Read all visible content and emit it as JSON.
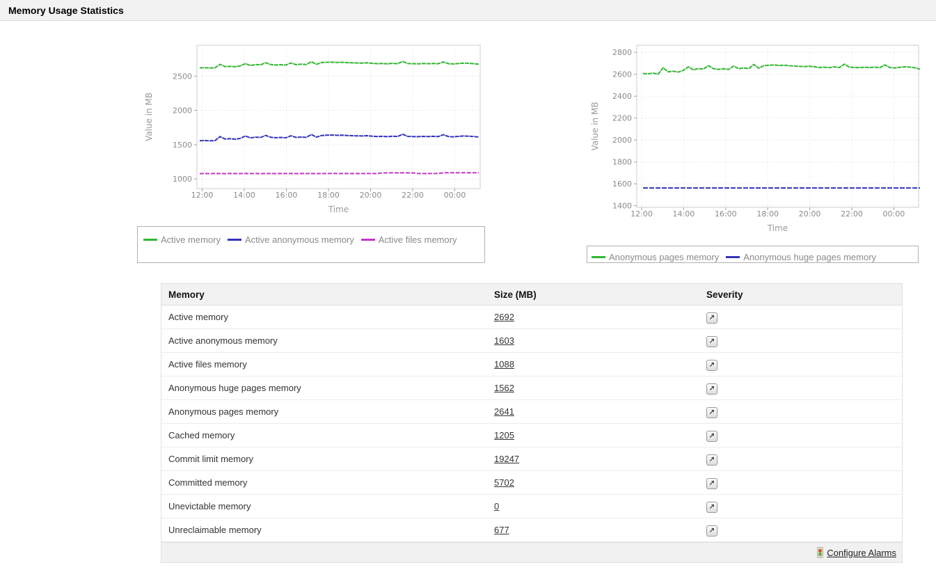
{
  "page": {
    "title": "Memory Usage Statistics"
  },
  "icons": {
    "severity_glyph": "↗"
  },
  "chart_data": [
    {
      "id": "left",
      "type": "line",
      "title": "",
      "xlabel": "Time",
      "ylabel": "Value in MB",
      "xticks": [
        "12:00",
        "14:00",
        "16:00",
        "18:00",
        "20:00",
        "22:00",
        "00:00"
      ],
      "yticks": [
        1000,
        1500,
        2000,
        2500
      ],
      "ylim": [
        860,
        2950
      ],
      "grid": true,
      "legend_position": "bottom",
      "series": [
        {
          "name": "Active memory",
          "color": "#33b733",
          "dash": "6 1",
          "values": [
            2620,
            2622,
            2618,
            2621,
            2672,
            2638,
            2642,
            2636,
            2648,
            2682,
            2655,
            2668,
            2664,
            2695,
            2668,
            2662,
            2666,
            2661,
            2692,
            2666,
            2674,
            2668,
            2710,
            2672,
            2697,
            2701,
            2703,
            2698,
            2701,
            2696,
            2693,
            2691,
            2689,
            2693,
            2686,
            2681,
            2684,
            2679,
            2686,
            2681,
            2714,
            2683,
            2681,
            2679,
            2683,
            2681,
            2684,
            2680,
            2707,
            2681,
            2677,
            2683,
            2689,
            2686,
            2681,
            2673
          ]
        },
        {
          "name": "Active anonymous memory",
          "color": "#3333bb",
          "dash": "6 1",
          "values": [
            1558,
            1560,
            1556,
            1559,
            1618,
            1582,
            1588,
            1580,
            1592,
            1628,
            1600,
            1610,
            1606,
            1635,
            1608,
            1602,
            1606,
            1601,
            1630,
            1606,
            1612,
            1607,
            1648,
            1610,
            1634,
            1638,
            1641,
            1636,
            1639,
            1634,
            1631,
            1629,
            1627,
            1631,
            1624,
            1619,
            1622,
            1617,
            1624,
            1619,
            1652,
            1621,
            1619,
            1617,
            1621,
            1619,
            1622,
            1618,
            1645,
            1619,
            1615,
            1621,
            1627,
            1624,
            1619,
            1611
          ]
        },
        {
          "name": "Active files memory",
          "color": "#c438c4",
          "dash": "6 2",
          "values": [
            1078,
            1079,
            1078,
            1080,
            1079,
            1078,
            1080,
            1079,
            1078,
            1080,
            1079,
            1080,
            1078,
            1080,
            1079,
            1078,
            1080,
            1079,
            1080,
            1078,
            1080,
            1079,
            1080,
            1078,
            1080,
            1079,
            1080,
            1080,
            1079,
            1080,
            1079,
            1080,
            1079,
            1080,
            1079,
            1080,
            1088,
            1089,
            1090,
            1089,
            1090,
            1089,
            1088,
            1080,
            1079,
            1080,
            1079,
            1080,
            1090,
            1091,
            1090,
            1091,
            1090,
            1091,
            1090,
            1090
          ]
        }
      ]
    },
    {
      "id": "right",
      "type": "line",
      "title": "",
      "xlabel": "Time",
      "ylabel": "Value in MB",
      "xticks": [
        "12:00",
        "14:00",
        "16:00",
        "18:00",
        "20:00",
        "22:00",
        "00:00"
      ],
      "yticks": [
        1400,
        1600,
        1800,
        2000,
        2200,
        2400,
        2600,
        2800
      ],
      "ylim": [
        1385,
        2865
      ],
      "grid": true,
      "legend_position": "bottom",
      "series": [
        {
          "name": "Anonymous pages memory",
          "color": "#33b733",
          "dash": "6 1",
          "values": [
            2607,
            2604,
            2610,
            2601,
            2660,
            2622,
            2628,
            2620,
            2635,
            2668,
            2640,
            2652,
            2648,
            2678,
            2650,
            2645,
            2650,
            2644,
            2675,
            2650,
            2658,
            2652,
            2690,
            2655,
            2678,
            2682,
            2685,
            2680,
            2683,
            2678,
            2675,
            2672,
            2670,
            2674,
            2668,
            2662,
            2665,
            2660,
            2668,
            2662,
            2692,
            2664,
            2662,
            2660,
            2664,
            2661,
            2665,
            2660,
            2686,
            2661,
            2657,
            2663,
            2668,
            2665,
            2660,
            2645
          ]
        },
        {
          "name": "Anonymous huge pages memory",
          "color": "#3333bb",
          "dash": "7 2",
          "values": [
            1562,
            1562,
            1562,
            1562,
            1562,
            1562,
            1562,
            1562,
            1562,
            1562,
            1562,
            1562,
            1562,
            1562,
            1562,
            1562,
            1562,
            1562,
            1562,
            1562,
            1562,
            1562,
            1562,
            1562,
            1562,
            1562,
            1562,
            1562,
            1562,
            1562,
            1562,
            1562,
            1562,
            1562,
            1562,
            1562,
            1562,
            1562,
            1562,
            1562,
            1562,
            1562,
            1562,
            1562,
            1562,
            1562,
            1562,
            1562,
            1562,
            1562,
            1562,
            1562,
            1562,
            1562,
            1562,
            1562
          ]
        }
      ]
    }
  ],
  "table": {
    "headers": [
      "Memory",
      "Size (MB)",
      "Severity"
    ],
    "rows": [
      {
        "name": "Active memory",
        "size": "2692"
      },
      {
        "name": "Active anonymous memory",
        "size": "1603"
      },
      {
        "name": "Active files memory",
        "size": "1088"
      },
      {
        "name": "Anonymous huge pages memory",
        "size": "1562"
      },
      {
        "name": "Anonymous pages memory",
        "size": "2641"
      },
      {
        "name": "Cached memory",
        "size": "1205"
      },
      {
        "name": "Commit limit memory",
        "size": "19247"
      },
      {
        "name": "Committed memory",
        "size": "5702"
      },
      {
        "name": "Unevictable memory",
        "size": "0"
      },
      {
        "name": "Unreclaimable memory",
        "size": "677"
      }
    ],
    "footer": {
      "link": "Configure Alarms"
    }
  }
}
